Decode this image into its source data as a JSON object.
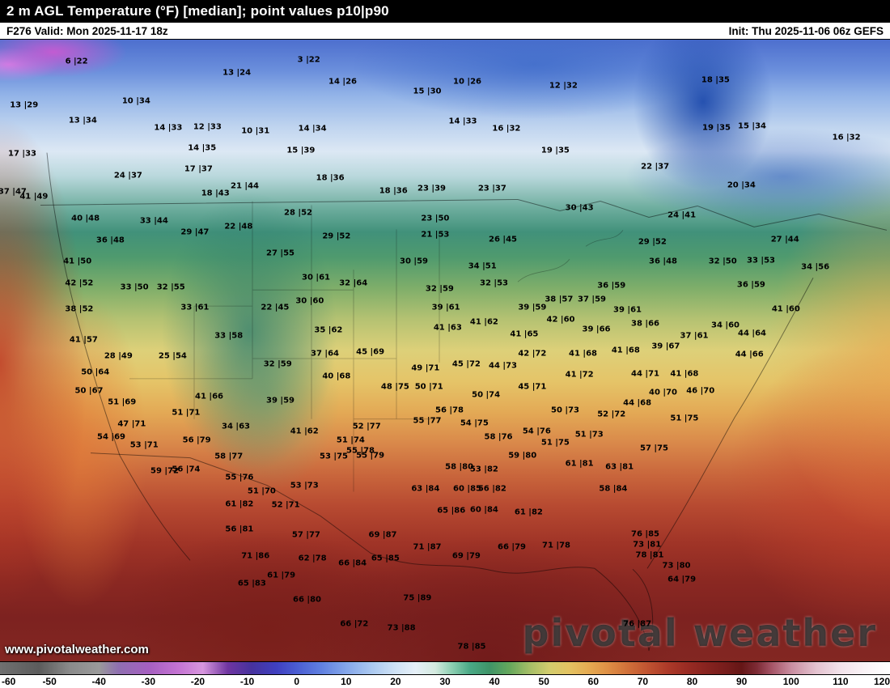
{
  "header": {
    "title": "2 m AGL Temperature (°F) [median]; point values p10|p90"
  },
  "infobar": {
    "left": "F276 Valid: Mon 2025-11-17 18z",
    "right": "Init: Thu 2025-11-06 06z GEFS"
  },
  "watermark": {
    "small": "www.pivotalweather.com",
    "large": "pivotal weather"
  },
  "colorbar": {
    "ticks": [
      -60,
      -50,
      -40,
      -30,
      -20,
      -10,
      0,
      10,
      20,
      30,
      40,
      50,
      60,
      70,
      80,
      90,
      100,
      110,
      120
    ],
    "stops": [
      [
        -60,
        "#707070"
      ],
      [
        -52,
        "#5c5c5c"
      ],
      [
        -46,
        "#8a8a8a"
      ],
      [
        -40,
        "#9a9a9a"
      ],
      [
        -36,
        "#8f6fb0"
      ],
      [
        -30,
        "#a55fc0"
      ],
      [
        -24,
        "#c473d2"
      ],
      [
        -19,
        "#d796de"
      ],
      [
        -14,
        "#6f35a0"
      ],
      [
        -9,
        "#46329e"
      ],
      [
        -4,
        "#4040c0"
      ],
      [
        0,
        "#4a5cd2"
      ],
      [
        5,
        "#6080e0"
      ],
      [
        10,
        "#84a6ea"
      ],
      [
        15,
        "#aac8f0"
      ],
      [
        20,
        "#cfe2f5"
      ],
      [
        24,
        "#e6f0f8"
      ],
      [
        28,
        "#d4eadf"
      ],
      [
        31,
        "#93d2b6"
      ],
      [
        35,
        "#4aa986"
      ],
      [
        39,
        "#3f9468"
      ],
      [
        43,
        "#64a75c"
      ],
      [
        47,
        "#a2bd66"
      ],
      [
        51,
        "#d2cc6d"
      ],
      [
        55,
        "#e3c362"
      ],
      [
        59,
        "#e5ab52"
      ],
      [
        63,
        "#de8f45"
      ],
      [
        67,
        "#d06f39"
      ],
      [
        71,
        "#c05331"
      ],
      [
        75,
        "#ad3a29"
      ],
      [
        79,
        "#992b23"
      ],
      [
        83,
        "#87231f"
      ],
      [
        87,
        "#751c1b"
      ],
      [
        90,
        "#651616"
      ],
      [
        93,
        "#7c2a34"
      ],
      [
        96,
        "#a55466"
      ],
      [
        100,
        "#c98da0"
      ],
      [
        105,
        "#e4c2cf"
      ],
      [
        110,
        "#f2e2ea"
      ],
      [
        115,
        "#faf3f6"
      ],
      [
        120,
        "#ffffff"
      ]
    ]
  },
  "map": {
    "points": [
      {
        "x": 8.6,
        "y": 3.5,
        "v": "6 |22"
      },
      {
        "x": 34.7,
        "y": 3.2,
        "v": "3 |22"
      },
      {
        "x": 26.6,
        "y": 5.3,
        "v": "13 |24"
      },
      {
        "x": 38.5,
        "y": 6.8,
        "v": "14 |26"
      },
      {
        "x": 52.5,
        "y": 6.8,
        "v": "10 |26"
      },
      {
        "x": 63.3,
        "y": 7.4,
        "v": "12 |32"
      },
      {
        "x": 80.4,
        "y": 6.5,
        "v": "18 |35"
      },
      {
        "x": 2.7,
        "y": 10.6,
        "v": "13 |29"
      },
      {
        "x": 15.3,
        "y": 9.9,
        "v": "10 |34"
      },
      {
        "x": 48.0,
        "y": 8.3,
        "v": "15 |30"
      },
      {
        "x": 84.5,
        "y": 13.9,
        "v": "15 |34"
      },
      {
        "x": 80.5,
        "y": 14.2,
        "v": "19 |35"
      },
      {
        "x": 9.3,
        "y": 13.0,
        "v": "13 |34"
      },
      {
        "x": 18.9,
        "y": 14.2,
        "v": "14 |33"
      },
      {
        "x": 23.3,
        "y": 14.0,
        "v": "12 |33"
      },
      {
        "x": 28.7,
        "y": 14.7,
        "v": "10 |31"
      },
      {
        "x": 35.1,
        "y": 14.3,
        "v": "14 |34"
      },
      {
        "x": 52.0,
        "y": 13.2,
        "v": "14 |33"
      },
      {
        "x": 56.9,
        "y": 14.3,
        "v": "16 |32"
      },
      {
        "x": 95.1,
        "y": 15.8,
        "v": "16 |32"
      },
      {
        "x": 2.5,
        "y": 18.4,
        "v": "17 |33"
      },
      {
        "x": 22.7,
        "y": 17.5,
        "v": "14 |35"
      },
      {
        "x": 33.8,
        "y": 17.8,
        "v": "15 |39"
      },
      {
        "x": 62.4,
        "y": 17.8,
        "v": "19 |35"
      },
      {
        "x": 73.6,
        "y": 20.4,
        "v": "22 |37"
      },
      {
        "x": 22.3,
        "y": 20.8,
        "v": "17 |37"
      },
      {
        "x": 37.1,
        "y": 22.3,
        "v": "18 |36"
      },
      {
        "x": 83.3,
        "y": 23.4,
        "v": "20 |34"
      },
      {
        "x": 14.4,
        "y": 21.9,
        "v": "24 |37"
      },
      {
        "x": 27.5,
        "y": 23.6,
        "v": "21 |44"
      },
      {
        "x": 24.2,
        "y": 24.7,
        "v": "18 |43"
      },
      {
        "x": 44.2,
        "y": 24.3,
        "v": "18 |36"
      },
      {
        "x": 48.5,
        "y": 23.9,
        "v": "23 |39"
      },
      {
        "x": 55.3,
        "y": 23.9,
        "v": "23 |37"
      },
      {
        "x": 1.4,
        "y": 24.5,
        "v": "37 |47"
      },
      {
        "x": 3.8,
        "y": 25.2,
        "v": "41 |49"
      },
      {
        "x": 65.1,
        "y": 27.1,
        "v": "30 |43"
      },
      {
        "x": 76.6,
        "y": 28.2,
        "v": "24 |41"
      },
      {
        "x": 33.5,
        "y": 27.9,
        "v": "28 |52"
      },
      {
        "x": 48.9,
        "y": 28.8,
        "v": "23 |50"
      },
      {
        "x": 17.3,
        "y": 29.2,
        "v": "33 |44"
      },
      {
        "x": 9.6,
        "y": 28.8,
        "v": "40 |48"
      },
      {
        "x": 21.9,
        "y": 31.0,
        "v": "29 |47"
      },
      {
        "x": 26.8,
        "y": 30.1,
        "v": "22 |48"
      },
      {
        "x": 56.5,
        "y": 32.1,
        "v": "26 |45"
      },
      {
        "x": 73.3,
        "y": 32.5,
        "v": "29 |52"
      },
      {
        "x": 12.4,
        "y": 32.3,
        "v": "36 |48"
      },
      {
        "x": 37.8,
        "y": 31.7,
        "v": "29 |52"
      },
      {
        "x": 48.9,
        "y": 31.4,
        "v": "21 |53"
      },
      {
        "x": 88.2,
        "y": 32.1,
        "v": "27 |44"
      },
      {
        "x": 81.2,
        "y": 35.7,
        "v": "32 |50"
      },
      {
        "x": 85.5,
        "y": 35.5,
        "v": "33 |53"
      },
      {
        "x": 8.7,
        "y": 35.7,
        "v": "41 |50"
      },
      {
        "x": 31.5,
        "y": 34.4,
        "v": "27 |55"
      },
      {
        "x": 46.5,
        "y": 35.7,
        "v": "30 |59"
      },
      {
        "x": 54.2,
        "y": 36.4,
        "v": "34 |51"
      },
      {
        "x": 74.5,
        "y": 35.7,
        "v": "36 |48"
      },
      {
        "x": 91.6,
        "y": 36.6,
        "v": "34 |56"
      },
      {
        "x": 8.9,
        "y": 39.2,
        "v": "42 |52"
      },
      {
        "x": 15.1,
        "y": 39.9,
        "v": "33 |50"
      },
      {
        "x": 19.2,
        "y": 39.9,
        "v": "32 |55"
      },
      {
        "x": 35.5,
        "y": 38.3,
        "v": "30 |61"
      },
      {
        "x": 39.7,
        "y": 39.2,
        "v": "32 |64"
      },
      {
        "x": 55.5,
        "y": 39.2,
        "v": "32 |53"
      },
      {
        "x": 68.7,
        "y": 39.6,
        "v": "36 |59"
      },
      {
        "x": 84.4,
        "y": 39.4,
        "v": "36 |59"
      },
      {
        "x": 8.9,
        "y": 43.4,
        "v": "38 |52"
      },
      {
        "x": 21.9,
        "y": 43.1,
        "v": "33 |61"
      },
      {
        "x": 30.9,
        "y": 43.1,
        "v": "22 |45"
      },
      {
        "x": 34.8,
        "y": 42.1,
        "v": "30 |60"
      },
      {
        "x": 49.4,
        "y": 40.1,
        "v": "32 |59"
      },
      {
        "x": 62.8,
        "y": 41.8,
        "v": "38 |57"
      },
      {
        "x": 66.5,
        "y": 41.8,
        "v": "37 |59"
      },
      {
        "x": 50.1,
        "y": 43.1,
        "v": "39 |61"
      },
      {
        "x": 59.8,
        "y": 43.1,
        "v": "39 |59"
      },
      {
        "x": 70.5,
        "y": 43.5,
        "v": "39 |61"
      },
      {
        "x": 63.0,
        "y": 45.1,
        "v": "42 |60"
      },
      {
        "x": 88.3,
        "y": 43.4,
        "v": "41 |60"
      },
      {
        "x": 67.0,
        "y": 46.6,
        "v": "39 |66"
      },
      {
        "x": 72.5,
        "y": 45.7,
        "v": "38 |66"
      },
      {
        "x": 81.5,
        "y": 46.0,
        "v": "34 |60"
      },
      {
        "x": 84.5,
        "y": 47.3,
        "v": "44 |64"
      },
      {
        "x": 36.9,
        "y": 46.8,
        "v": "35 |62"
      },
      {
        "x": 50.3,
        "y": 46.4,
        "v": "41 |63"
      },
      {
        "x": 54.4,
        "y": 45.5,
        "v": "41 |62"
      },
      {
        "x": 58.9,
        "y": 47.4,
        "v": "41 |65"
      },
      {
        "x": 9.4,
        "y": 48.3,
        "v": "41 |57"
      },
      {
        "x": 25.7,
        "y": 47.7,
        "v": "33 |58"
      },
      {
        "x": 78.0,
        "y": 47.7,
        "v": "37 |61"
      },
      {
        "x": 13.3,
        "y": 50.9,
        "v": "28 |49"
      },
      {
        "x": 19.4,
        "y": 50.9,
        "v": "25 |54"
      },
      {
        "x": 36.5,
        "y": 50.5,
        "v": "37 |64"
      },
      {
        "x": 41.6,
        "y": 50.3,
        "v": "45 |69"
      },
      {
        "x": 59.8,
        "y": 50.5,
        "v": "42 |72"
      },
      {
        "x": 65.5,
        "y": 50.5,
        "v": "41 |68"
      },
      {
        "x": 70.3,
        "y": 50.0,
        "v": "41 |68"
      },
      {
        "x": 74.8,
        "y": 49.4,
        "v": "39 |67"
      },
      {
        "x": 84.2,
        "y": 50.6,
        "v": "44 |66"
      },
      {
        "x": 31.2,
        "y": 52.2,
        "v": "32 |59"
      },
      {
        "x": 47.8,
        "y": 52.9,
        "v": "49 |71"
      },
      {
        "x": 52.4,
        "y": 52.2,
        "v": "45 |72"
      },
      {
        "x": 56.5,
        "y": 52.5,
        "v": "44 |73"
      },
      {
        "x": 65.1,
        "y": 53.9,
        "v": "41 |72"
      },
      {
        "x": 72.5,
        "y": 53.8,
        "v": "44 |71"
      },
      {
        "x": 76.9,
        "y": 53.8,
        "v": "41 |68"
      },
      {
        "x": 10.7,
        "y": 53.5,
        "v": "50 |64"
      },
      {
        "x": 37.8,
        "y": 54.2,
        "v": "40 |68"
      },
      {
        "x": 44.4,
        "y": 55.8,
        "v": "48 |75"
      },
      {
        "x": 48.2,
        "y": 55.8,
        "v": "50 |71"
      },
      {
        "x": 59.8,
        "y": 55.8,
        "v": "45 |71"
      },
      {
        "x": 74.5,
        "y": 56.8,
        "v": "40 |70"
      },
      {
        "x": 78.7,
        "y": 56.5,
        "v": "46 |70"
      },
      {
        "x": 10.0,
        "y": 56.5,
        "v": "50 |67"
      },
      {
        "x": 23.5,
        "y": 57.4,
        "v": "41 |66"
      },
      {
        "x": 31.5,
        "y": 58.1,
        "v": "39 |59"
      },
      {
        "x": 54.6,
        "y": 57.1,
        "v": "50 |74"
      },
      {
        "x": 71.6,
        "y": 58.4,
        "v": "44 |68"
      },
      {
        "x": 13.7,
        "y": 58.3,
        "v": "51 |69"
      },
      {
        "x": 20.9,
        "y": 60.0,
        "v": "51 |71"
      },
      {
        "x": 63.5,
        "y": 59.7,
        "v": "50 |73"
      },
      {
        "x": 68.7,
        "y": 60.3,
        "v": "52 |72"
      },
      {
        "x": 76.9,
        "y": 61.0,
        "v": "51 |75"
      },
      {
        "x": 41.2,
        "y": 62.2,
        "v": "52 |77"
      },
      {
        "x": 50.5,
        "y": 59.7,
        "v": "56 |78"
      },
      {
        "x": 48.0,
        "y": 61.3,
        "v": "55 |77"
      },
      {
        "x": 53.3,
        "y": 61.7,
        "v": "54 |75"
      },
      {
        "x": 39.4,
        "y": 64.5,
        "v": "51 |74"
      },
      {
        "x": 60.3,
        "y": 63.0,
        "v": "54 |76"
      },
      {
        "x": 14.8,
        "y": 61.9,
        "v": "47 |71"
      },
      {
        "x": 26.5,
        "y": 62.3,
        "v": "34 |63"
      },
      {
        "x": 34.2,
        "y": 63.0,
        "v": "41 |62"
      },
      {
        "x": 12.5,
        "y": 63.9,
        "v": "54 |69"
      },
      {
        "x": 16.2,
        "y": 65.2,
        "v": "53 |71"
      },
      {
        "x": 22.1,
        "y": 64.5,
        "v": "56 |79"
      },
      {
        "x": 56.0,
        "y": 63.9,
        "v": "58 |76"
      },
      {
        "x": 62.4,
        "y": 64.9,
        "v": "51 |75"
      },
      {
        "x": 66.2,
        "y": 63.6,
        "v": "51 |73"
      },
      {
        "x": 40.5,
        "y": 66.2,
        "v": "55 |78"
      },
      {
        "x": 41.6,
        "y": 66.9,
        "v": "55 |79"
      },
      {
        "x": 25.7,
        "y": 67.1,
        "v": "58 |77"
      },
      {
        "x": 37.5,
        "y": 67.1,
        "v": "53 |75"
      },
      {
        "x": 18.5,
        "y": 69.4,
        "v": "59 |72"
      },
      {
        "x": 20.9,
        "y": 69.1,
        "v": "56 |74"
      },
      {
        "x": 58.7,
        "y": 66.9,
        "v": "59 |80"
      },
      {
        "x": 73.5,
        "y": 65.8,
        "v": "57 |75"
      },
      {
        "x": 51.6,
        "y": 68.7,
        "v": "58 |80"
      },
      {
        "x": 54.4,
        "y": 69.1,
        "v": "53 |82"
      },
      {
        "x": 65.1,
        "y": 68.2,
        "v": "61 |81"
      },
      {
        "x": 69.6,
        "y": 68.8,
        "v": "63 |81"
      },
      {
        "x": 26.9,
        "y": 70.4,
        "v": "55 |76"
      },
      {
        "x": 34.2,
        "y": 71.7,
        "v": "53 |73"
      },
      {
        "x": 68.9,
        "y": 72.3,
        "v": "58 |84"
      },
      {
        "x": 29.4,
        "y": 72.7,
        "v": "51 |70"
      },
      {
        "x": 47.8,
        "y": 72.3,
        "v": "63 |84"
      },
      {
        "x": 52.5,
        "y": 72.3,
        "v": "60 |85"
      },
      {
        "x": 55.3,
        "y": 72.3,
        "v": "56 |82"
      },
      {
        "x": 32.1,
        "y": 74.9,
        "v": "52 |71"
      },
      {
        "x": 26.9,
        "y": 74.7,
        "v": "61 |82"
      },
      {
        "x": 50.7,
        "y": 75.8,
        "v": "65 |86"
      },
      {
        "x": 54.4,
        "y": 75.6,
        "v": "60 |84"
      },
      {
        "x": 59.4,
        "y": 76.0,
        "v": "61 |82"
      },
      {
        "x": 72.5,
        "y": 79.5,
        "v": "76 |85"
      },
      {
        "x": 34.4,
        "y": 79.7,
        "v": "57 |77"
      },
      {
        "x": 43.0,
        "y": 79.7,
        "v": "69 |87"
      },
      {
        "x": 48.0,
        "y": 81.7,
        "v": "71 |87"
      },
      {
        "x": 52.4,
        "y": 83.1,
        "v": "69 |79"
      },
      {
        "x": 57.5,
        "y": 81.7,
        "v": "66 |79"
      },
      {
        "x": 62.5,
        "y": 81.4,
        "v": "71 |78"
      },
      {
        "x": 26.9,
        "y": 78.8,
        "v": "56 |81"
      },
      {
        "x": 28.7,
        "y": 83.1,
        "v": "71 |86"
      },
      {
        "x": 35.1,
        "y": 83.4,
        "v": "62 |78"
      },
      {
        "x": 43.3,
        "y": 83.4,
        "v": "65 |85"
      },
      {
        "x": 39.6,
        "y": 84.3,
        "v": "66 |84"
      },
      {
        "x": 72.7,
        "y": 81.2,
        "v": "73 |81"
      },
      {
        "x": 73.0,
        "y": 83.0,
        "v": "78 |81"
      },
      {
        "x": 76.0,
        "y": 84.7,
        "v": "73 |80"
      },
      {
        "x": 76.6,
        "y": 86.9,
        "v": "64 |79"
      },
      {
        "x": 31.6,
        "y": 86.2,
        "v": "61 |79"
      },
      {
        "x": 28.3,
        "y": 87.5,
        "v": "65 |83"
      },
      {
        "x": 46.9,
        "y": 89.9,
        "v": "75 |89"
      },
      {
        "x": 34.5,
        "y": 90.1,
        "v": "66 |80"
      },
      {
        "x": 39.8,
        "y": 94.0,
        "v": "66 |72"
      },
      {
        "x": 45.1,
        "y": 94.7,
        "v": "73 |88"
      },
      {
        "x": 71.6,
        "y": 94.0,
        "v": "76 |87"
      },
      {
        "x": 53.0,
        "y": 97.7,
        "v": "78 |85"
      }
    ]
  }
}
